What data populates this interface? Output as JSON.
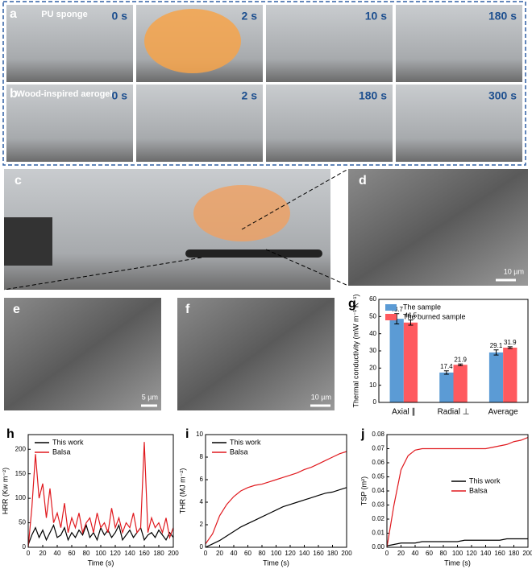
{
  "panels": {
    "a": {
      "label": "a",
      "title": "PU sponge",
      "times": [
        "0 s",
        "2 s",
        "10 s",
        "180 s"
      ]
    },
    "b": {
      "label": "b",
      "title": "Wood-inspired aerogel",
      "times": [
        "0 s",
        "2 s",
        "180 s",
        "300 s"
      ]
    },
    "c": {
      "label": "c"
    },
    "d": {
      "label": "d",
      "scale_bar": "10 µm"
    },
    "e": {
      "label": "e",
      "scale_bar": "5 µm"
    },
    "f": {
      "label": "f",
      "scale_bar": "10 µm"
    }
  },
  "chart_data": [
    {
      "type": "bar",
      "panel": "g",
      "y_label": "Thermal conductivity (mW m⁻¹ K⁻¹)",
      "categories": [
        "Axial ∥",
        "Radial ⊥",
        "Average"
      ],
      "series": [
        {
          "name": "The sample",
          "color": "#5b9bd5",
          "values": [
            48.7,
            17.4,
            29.1
          ],
          "errors": [
            3,
            1,
            1.5
          ]
        },
        {
          "name": "The burned sample",
          "color": "#ff5a5f",
          "values": [
            46.5,
            21.9,
            31.9
          ],
          "errors": [
            1.5,
            0.5,
            0.5
          ]
        }
      ],
      "ylim": [
        0,
        60
      ],
      "yticks": [
        0,
        10,
        20,
        30,
        40,
        50,
        60
      ],
      "legend": "upper right"
    },
    {
      "type": "line",
      "panel": "h",
      "x_label": "Time (s)",
      "y_label": "HRR (Kw m⁻²)",
      "x": [
        0,
        5,
        10,
        15,
        20,
        25,
        30,
        35,
        40,
        45,
        50,
        55,
        60,
        65,
        70,
        75,
        80,
        85,
        90,
        95,
        100,
        105,
        110,
        115,
        120,
        125,
        130,
        135,
        140,
        145,
        150,
        155,
        160,
        165,
        170,
        175,
        180,
        185,
        190,
        195,
        200
      ],
      "series": [
        {
          "name": "This work",
          "color": "#000000",
          "values": [
            5,
            25,
            40,
            20,
            35,
            15,
            30,
            45,
            20,
            25,
            40,
            15,
            30,
            20,
            35,
            25,
            45,
            20,
            30,
            15,
            40,
            25,
            35,
            20,
            30,
            45,
            15,
            25,
            35,
            20,
            30,
            40,
            15,
            25,
            30,
            20,
            35,
            25,
            15,
            30,
            20
          ]
        },
        {
          "name": "Balsa",
          "color": "#e0191e",
          "values": [
            0,
            80,
            190,
            100,
            130,
            60,
            120,
            50,
            70,
            40,
            90,
            30,
            60,
            40,
            70,
            30,
            50,
            60,
            30,
            70,
            40,
            50,
            30,
            80,
            40,
            60,
            30,
            50,
            40,
            70,
            30,
            40,
            215,
            30,
            60,
            40,
            50,
            30,
            60,
            20,
            40
          ]
        }
      ],
      "xlim": [
        0,
        200
      ],
      "xticks": [
        0,
        20,
        40,
        60,
        80,
        100,
        120,
        140,
        160,
        180,
        200
      ],
      "ylim": [
        0,
        230
      ],
      "yticks": [
        0,
        50,
        100,
        150,
        200
      ],
      "legend": "upper left"
    },
    {
      "type": "line",
      "panel": "i",
      "x_label": "Time (s)",
      "y_label": "THR (MJ m⁻²)",
      "x": [
        0,
        10,
        20,
        30,
        40,
        50,
        60,
        70,
        80,
        90,
        100,
        110,
        120,
        130,
        140,
        150,
        160,
        170,
        180,
        190,
        200
      ],
      "series": [
        {
          "name": "This work",
          "color": "#000000",
          "values": [
            0,
            0.3,
            0.6,
            1.0,
            1.4,
            1.8,
            2.1,
            2.4,
            2.7,
            3.0,
            3.3,
            3.6,
            3.8,
            4.0,
            4.2,
            4.4,
            4.6,
            4.8,
            4.9,
            5.1,
            5.3
          ]
        },
        {
          "name": "Balsa",
          "color": "#e0191e",
          "values": [
            0.3,
            1.2,
            2.8,
            3.8,
            4.5,
            5.0,
            5.3,
            5.5,
            5.6,
            5.8,
            6.0,
            6.2,
            6.4,
            6.6,
            6.9,
            7.1,
            7.4,
            7.7,
            8.0,
            8.3,
            8.5
          ]
        }
      ],
      "xlim": [
        0,
        200
      ],
      "xticks": [
        0,
        20,
        40,
        60,
        80,
        100,
        120,
        140,
        160,
        180,
        200
      ],
      "ylim": [
        0,
        10
      ],
      "yticks": [
        0,
        2,
        4,
        6,
        8,
        10
      ],
      "legend": "upper left"
    },
    {
      "type": "line",
      "panel": "j",
      "x_label": "Time (s)",
      "y_label": "TSP (m²)",
      "x": [
        0,
        10,
        20,
        30,
        40,
        50,
        60,
        70,
        80,
        90,
        100,
        110,
        120,
        130,
        140,
        150,
        160,
        170,
        180,
        190,
        200
      ],
      "series": [
        {
          "name": "This work",
          "color": "#000000",
          "values": [
            0.001,
            0.002,
            0.003,
            0.003,
            0.003,
            0.004,
            0.004,
            0.004,
            0.004,
            0.004,
            0.004,
            0.005,
            0.005,
            0.005,
            0.005,
            0.005,
            0.005,
            0.006,
            0.006,
            0.006,
            0.006
          ]
        },
        {
          "name": "Balsa",
          "color": "#e0191e",
          "values": [
            0,
            0.03,
            0.055,
            0.065,
            0.069,
            0.07,
            0.07,
            0.07,
            0.07,
            0.07,
            0.07,
            0.07,
            0.07,
            0.07,
            0.07,
            0.071,
            0.072,
            0.073,
            0.075,
            0.076,
            0.078
          ]
        }
      ],
      "xlim": [
        0,
        200
      ],
      "xticks": [
        0,
        20,
        40,
        60,
        80,
        100,
        120,
        140,
        160,
        180,
        200
      ],
      "ylim": [
        0,
        0.08
      ],
      "yticks": [
        {
          "value": 0,
          "label": "0.00"
        },
        0.01,
        0.02,
        0.03,
        0.04,
        0.05,
        0.06,
        0.07,
        0.08
      ],
      "legend": "center right"
    }
  ]
}
